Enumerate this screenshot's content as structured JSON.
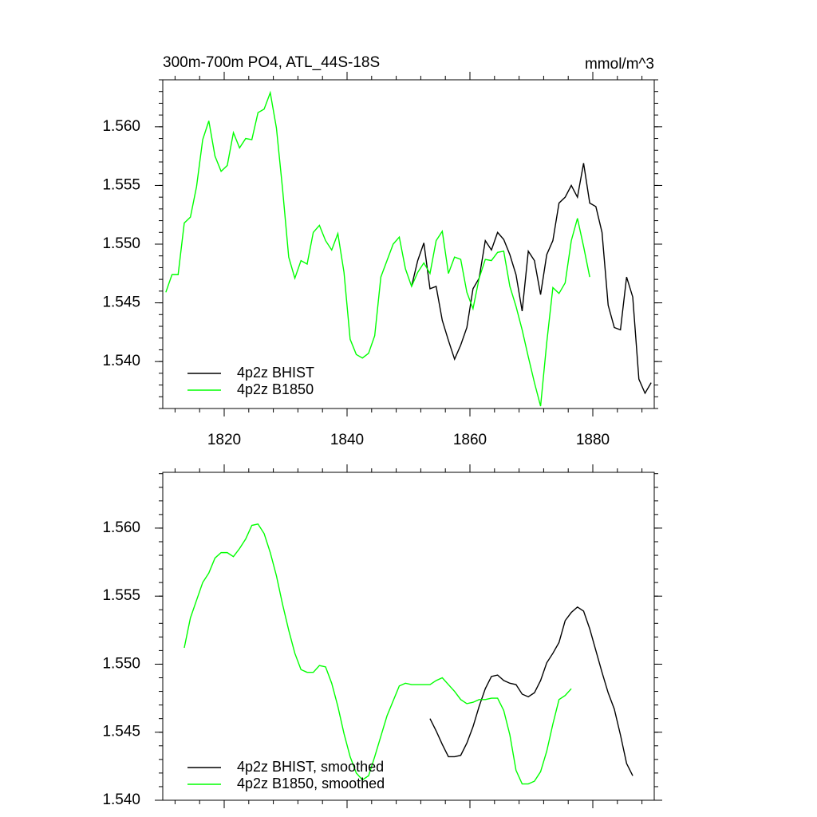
{
  "chart_data": [
    {
      "type": "line",
      "title": "300m-700m PO4, ATL_44S-18S",
      "units": "mmol/m^3",
      "xlim": [
        1810,
        1890
      ],
      "xticks": [
        1820,
        1840,
        1860,
        1880
      ],
      "ylim": [
        1.536,
        1.564
      ],
      "yticks": [
        {
          "value": 1.54,
          "label": "1.540"
        },
        {
          "value": 1.545,
          "label": "1.545"
        },
        {
          "value": 1.55,
          "label": "1.550"
        },
        {
          "value": 1.555,
          "label": "1.555"
        },
        {
          "value": 1.56,
          "label": "1.560"
        }
      ],
      "xtick_labels": true,
      "legend": "lower left",
      "series": [
        {
          "name": "4p2z BHIST",
          "color": "#000000",
          "x": [
            1850.5,
            1851.5,
            1852.5,
            1853.5,
            1854.5,
            1855.5,
            1856.5,
            1857.5,
            1858.5,
            1859.5,
            1860.5,
            1861.5,
            1862.5,
            1863.5,
            1864.5,
            1865.5,
            1866.5,
            1867.5,
            1868.5,
            1869.5,
            1870.5,
            1871.5,
            1872.5,
            1873.5,
            1874.5,
            1875.5,
            1876.5,
            1877.5,
            1878.5,
            1879.5,
            1880.5,
            1881.5,
            1882.5,
            1883.5,
            1884.5,
            1885.5,
            1886.5,
            1887.5,
            1888.5,
            1889.5
          ],
          "values": [
            1.5464,
            1.5486,
            1.5501,
            1.5462,
            1.5464,
            1.5435,
            1.5418,
            1.5402,
            1.5414,
            1.5429,
            1.5462,
            1.5471,
            1.5503,
            1.5495,
            1.551,
            1.5504,
            1.5491,
            1.5474,
            1.5443,
            1.5494,
            1.5486,
            1.5457,
            1.5491,
            1.5503,
            1.5535,
            1.554,
            1.555,
            1.554,
            1.5569,
            1.5535,
            1.5532,
            1.551,
            1.5448,
            1.5429,
            1.5427,
            1.5472,
            1.5455,
            1.5385,
            1.5373,
            1.5382
          ]
        },
        {
          "name": "4p2z B1850",
          "color": "#00ff00",
          "x": [
            1810.5,
            1811.5,
            1812.5,
            1813.5,
            1814.5,
            1815.5,
            1816.5,
            1817.5,
            1818.5,
            1819.5,
            1820.5,
            1821.5,
            1822.5,
            1823.5,
            1824.5,
            1825.5,
            1826.5,
            1827.5,
            1828.5,
            1829.5,
            1830.5,
            1831.5,
            1832.5,
            1833.5,
            1834.5,
            1835.5,
            1836.5,
            1837.5,
            1838.5,
            1839.5,
            1840.5,
            1841.5,
            1842.5,
            1843.5,
            1844.5,
            1845.5,
            1846.5,
            1847.5,
            1848.5,
            1849.5,
            1850.5,
            1851.5,
            1852.5,
            1853.5,
            1854.5,
            1855.5,
            1856.5,
            1857.5,
            1858.5,
            1859.5,
            1860.5,
            1861.5,
            1862.5,
            1863.5,
            1864.5,
            1865.5,
            1866.5,
            1867.5,
            1868.5,
            1869.5,
            1870.5,
            1871.5,
            1872.5,
            1873.5,
            1874.5,
            1875.5,
            1876.5,
            1877.5,
            1878.5,
            1879.5
          ],
          "values": [
            1.5459,
            1.5474,
            1.5474,
            1.5518,
            1.5523,
            1.5549,
            1.5589,
            1.5605,
            1.5575,
            1.5562,
            1.5567,
            1.5595,
            1.5582,
            1.559,
            1.5589,
            1.5612,
            1.5615,
            1.5629,
            1.5599,
            1.5547,
            1.5489,
            1.5471,
            1.5486,
            1.5483,
            1.551,
            1.5516,
            1.5503,
            1.5495,
            1.5509,
            1.5476,
            1.5419,
            1.5406,
            1.5403,
            1.5407,
            1.5422,
            1.5472,
            1.5486,
            1.55,
            1.5506,
            1.5479,
            1.5464,
            1.5476,
            1.5484,
            1.5475,
            1.5503,
            1.5511,
            1.5475,
            1.5489,
            1.5487,
            1.5459,
            1.5445,
            1.5471,
            1.5487,
            1.5486,
            1.5493,
            1.5494,
            1.5464,
            1.5447,
            1.5427,
            1.5404,
            1.5382,
            1.5362,
            1.5416,
            1.5463,
            1.5458,
            1.5467,
            1.5503,
            1.5522,
            1.5498,
            1.5472
          ]
        }
      ]
    },
    {
      "type": "line",
      "xlim": [
        1810,
        1890
      ],
      "xticks": [
        1820,
        1840,
        1860,
        1880
      ],
      "ylim": [
        1.54,
        1.5641
      ],
      "yticks": [
        {
          "value": 1.54,
          "label": "1.540"
        },
        {
          "value": 1.545,
          "label": "1.545"
        },
        {
          "value": 1.55,
          "label": "1.550"
        },
        {
          "value": 1.555,
          "label": "1.555"
        },
        {
          "value": 1.56,
          "label": "1.560"
        }
      ],
      "xtick_labels": false,
      "legend": "lower left",
      "series": [
        {
          "name": "4p2z BHIST, smoothed",
          "color": "#000000",
          "x": [
            1853.5,
            1854.5,
            1855.5,
            1856.5,
            1857.5,
            1858.5,
            1859.5,
            1860.5,
            1861.5,
            1862.5,
            1863.5,
            1864.5,
            1865.5,
            1866.5,
            1867.5,
            1868.5,
            1869.5,
            1870.5,
            1871.5,
            1872.5,
            1873.5,
            1874.5,
            1875.5,
            1876.5,
            1877.5,
            1878.5,
            1879.5,
            1880.5,
            1881.5,
            1882.5,
            1883.5,
            1884.5,
            1885.5,
            1886.5
          ],
          "values": [
            1.546,
            1.5451,
            1.5441,
            1.5432,
            1.5432,
            1.5433,
            1.5442,
            1.5454,
            1.5469,
            1.5482,
            1.5491,
            1.5492,
            1.5488,
            1.5486,
            1.5485,
            1.5478,
            1.5476,
            1.5479,
            1.5488,
            1.5501,
            1.5508,
            1.5516,
            1.5532,
            1.5538,
            1.5542,
            1.5539,
            1.5526,
            1.551,
            1.5494,
            1.5479,
            1.5467,
            1.5448,
            1.5427,
            1.5418
          ]
        },
        {
          "name": "4p2z B1850, smoothed",
          "color": "#00ff00",
          "x": [
            1813.5,
            1814.5,
            1815.5,
            1816.5,
            1817.5,
            1818.5,
            1819.5,
            1820.5,
            1821.5,
            1822.5,
            1823.5,
            1824.5,
            1825.5,
            1826.5,
            1827.5,
            1828.5,
            1829.5,
            1830.5,
            1831.5,
            1832.5,
            1833.5,
            1834.5,
            1835.5,
            1836.5,
            1837.5,
            1838.5,
            1839.5,
            1840.5,
            1841.5,
            1842.5,
            1843.5,
            1844.5,
            1845.5,
            1846.5,
            1847.5,
            1848.5,
            1849.5,
            1850.5,
            1851.5,
            1852.5,
            1853.5,
            1854.5,
            1855.5,
            1856.5,
            1857.5,
            1858.5,
            1859.5,
            1860.5,
            1861.5,
            1862.5,
            1863.5,
            1864.5,
            1865.5,
            1866.5,
            1867.5,
            1868.5,
            1869.5,
            1870.5,
            1871.5,
            1872.5,
            1873.5,
            1874.5,
            1875.5,
            1876.5
          ],
          "values": [
            1.5512,
            1.5534,
            1.5547,
            1.556,
            1.5567,
            1.5578,
            1.5582,
            1.5582,
            1.5579,
            1.5585,
            1.5592,
            1.5602,
            1.5603,
            1.5596,
            1.5582,
            1.5565,
            1.5544,
            1.5525,
            1.5508,
            1.5496,
            1.5494,
            1.5494,
            1.5499,
            1.5498,
            1.5486,
            1.5469,
            1.5449,
            1.5432,
            1.542,
            1.5415,
            1.5418,
            1.5432,
            1.5447,
            1.5462,
            1.5473,
            1.5484,
            1.5486,
            1.5485,
            1.5485,
            1.5485,
            1.5485,
            1.5488,
            1.549,
            1.5485,
            1.548,
            1.5474,
            1.5471,
            1.5472,
            1.5474,
            1.5474,
            1.5475,
            1.5475,
            1.5466,
            1.5448,
            1.5422,
            1.5412,
            1.5412,
            1.5414,
            1.5421,
            1.5436,
            1.5456,
            1.5474,
            1.5477,
            1.5482
          ]
        }
      ]
    }
  ]
}
